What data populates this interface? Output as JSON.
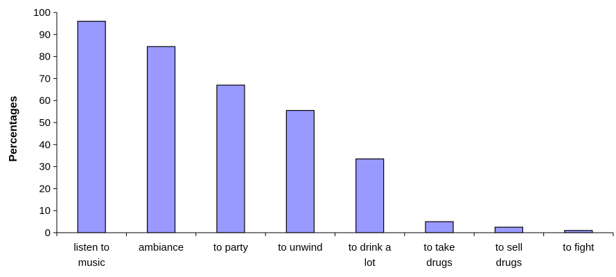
{
  "chart_data": {
    "type": "bar",
    "categories": [
      [
        "listen to",
        "music"
      ],
      [
        "ambiance"
      ],
      [
        "to party"
      ],
      [
        "to unwind"
      ],
      [
        "to drink a",
        "lot"
      ],
      [
        "to take",
        "drugs"
      ],
      [
        "to sell",
        "drugs"
      ],
      [
        "to fight"
      ]
    ],
    "values": [
      96,
      84.5,
      67,
      55.5,
      33.5,
      5,
      2.5,
      1
    ],
    "ylabel": "Percentages",
    "ylim": [
      0,
      100
    ],
    "yticks": [
      0,
      10,
      20,
      30,
      40,
      50,
      60,
      70,
      80,
      90,
      100
    ],
    "grid": false,
    "bar_color": "#9999FF",
    "bar_stroke": "#000000"
  }
}
